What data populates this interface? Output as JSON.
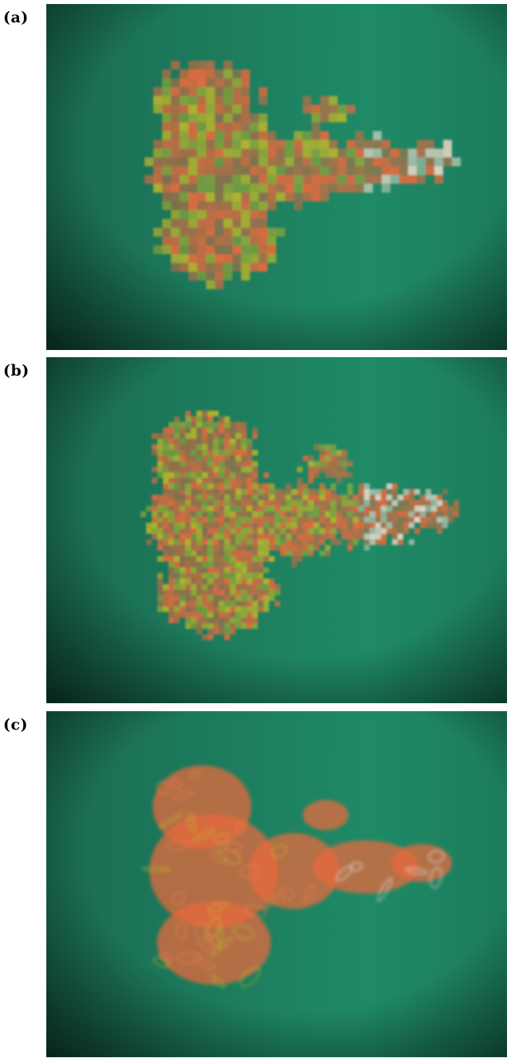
{
  "panels": [
    {
      "label": "(a)",
      "resolution": "low"
    },
    {
      "label": "(b)",
      "resolution": "medium"
    },
    {
      "label": "(c)",
      "resolution": "high"
    }
  ],
  "colors": {
    "background_mid": "#1f8a66",
    "background_edge": "#0d3a2c",
    "plume_orange": "#e56a3e",
    "plume_yellow": "#b7b52c",
    "plume_white": "#e8d9c8"
  }
}
